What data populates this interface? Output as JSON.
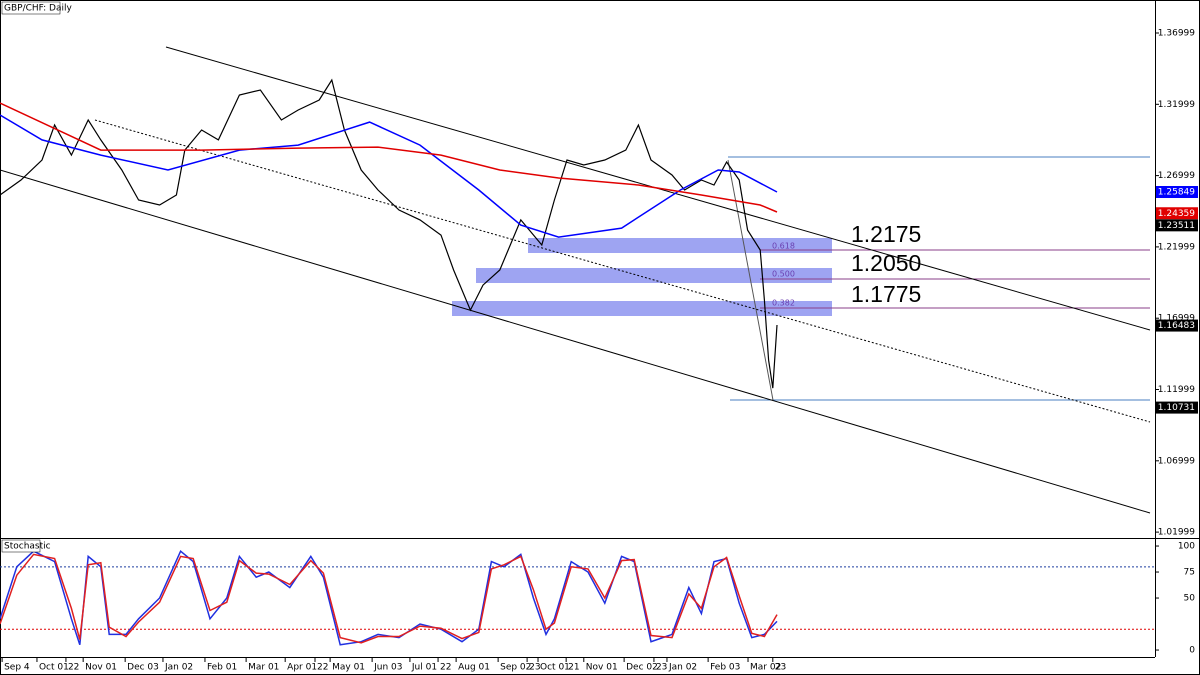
{
  "chart_data": [
    {
      "type": "line",
      "title": "GBP/CHF: Daily",
      "xlim": [
        0,
        275
      ],
      "ylim": [
        1.01586,
        1.39173
      ],
      "yticks": [
        1.01999,
        1.06999,
        1.11999,
        1.16999,
        1.21999,
        1.26999,
        1.31999,
        1.36999
      ],
      "series": [
        {
          "color": "#000000",
          "x": [
            0,
            5,
            10,
            13,
            17,
            21,
            24,
            29,
            33,
            38,
            42,
            44,
            48,
            52,
            57,
            62,
            67,
            71,
            76,
            79,
            82,
            86,
            90,
            95,
            100,
            105,
            108,
            112,
            115,
            119,
            124,
            129,
            132,
            135,
            139,
            144,
            149,
            152,
            155,
            160,
            163,
            167,
            170,
            173,
            176,
            178,
            181,
            182,
            183,
            184,
            185
          ],
          "values": [
            1.2564,
            1.2669,
            1.2809,
            1.3055,
            1.2844,
            1.309,
            1.295,
            1.2739,
            1.2529,
            1.2494,
            1.2564,
            1.2879,
            1.302,
            1.295,
            1.3265,
            1.33,
            1.309,
            1.316,
            1.323,
            1.337,
            1.302,
            1.2739,
            1.2599,
            1.2459,
            1.2389,
            1.2283,
            1.2038,
            1.1757,
            1.1932,
            1.2038,
            1.2389,
            1.2213,
            1.2529,
            1.2809,
            1.2774,
            1.2809,
            1.2879,
            1.3055,
            1.2809,
            1.2704,
            1.2599,
            1.2669,
            1.2634,
            1.2795,
            1.2669,
            1.2318,
            1.2178,
            1.1827,
            1.1406,
            1.121,
            1.1652
          ]
        },
        {
          "color": "#0000ff",
          "x": [
            0,
            10,
            24,
            40,
            57,
            71,
            88,
            100,
            114,
            124,
            133,
            148,
            162,
            171,
            176,
            185
          ],
          "values": [
            1.3125,
            1.295,
            1.2844,
            1.2739,
            1.2879,
            1.2914,
            1.3075,
            1.2914,
            1.2599,
            1.2353,
            1.2269,
            1.2332,
            1.2599,
            1.2739,
            1.2725,
            1.2585
          ]
        },
        {
          "color": "#e00000",
          "x": [
            0,
            24,
            48,
            71,
            90,
            105,
            119,
            133,
            152,
            167,
            181,
            185
          ],
          "values": [
            1.3209,
            1.2879,
            1.2879,
            1.2893,
            1.29,
            1.2844,
            1.2739,
            1.2683,
            1.2634,
            1.2564,
            1.2494,
            1.2445
          ]
        }
      ],
      "price_tags": [
        {
          "value": 1.25849,
          "color": "#0000ff"
        },
        {
          "value": 1.24359,
          "color": "#e00000"
        },
        {
          "value": 1.23511,
          "color": "#000000"
        },
        {
          "value": 1.16483,
          "color": "#000000"
        },
        {
          "value": 1.10731,
          "color": "#000000"
        }
      ],
      "fib_labels": [
        "0.618",
        "0.500",
        "0.382"
      ],
      "annotations": [
        "1.2175",
        "1.2050",
        "1.1775"
      ]
    },
    {
      "type": "line",
      "title": "Stochastic",
      "xlim": [
        0,
        275
      ],
      "ylim": [
        -6.7,
        105.8
      ],
      "yticks": [
        0,
        50,
        75,
        100
      ],
      "levels": [
        {
          "value": 80,
          "color": "#1f3fa0"
        },
        {
          "value": 20,
          "color": "#e00000"
        }
      ],
      "xticks": [
        {
          "value": 0.5,
          "label": "Sep 4"
        },
        {
          "value": 8.8,
          "label": "Oct 01"
        },
        {
          "value": 15.7,
          "label": "22"
        },
        {
          "value": 19.8,
          "label": "Nov 01"
        },
        {
          "value": 29.8,
          "label": "Dec 03"
        },
        {
          "value": 38.8,
          "label": "Jan 02"
        },
        {
          "value": 48.8,
          "label": "Feb 01"
        },
        {
          "value": 58.6,
          "label": "Mar 01"
        },
        {
          "value": 67.9,
          "label": "Apr 01"
        },
        {
          "value": 75,
          "label": "22"
        },
        {
          "value": 78.6,
          "label": "May 01"
        },
        {
          "value": 88.6,
          "label": "Jun 03"
        },
        {
          "value": 97.6,
          "label": "Jul 01"
        },
        {
          "value": 104.3,
          "label": "22"
        },
        {
          "value": 108.6,
          "label": "Aug 01"
        },
        {
          "value": 118.6,
          "label": "Sep 02"
        },
        {
          "value": 125.5,
          "label": "23"
        },
        {
          "value": 128.1,
          "label": "Oct 01"
        },
        {
          "value": 134.8,
          "label": "21"
        },
        {
          "value": 139,
          "label": "Nov 01"
        },
        {
          "value": 148.6,
          "label": "Dec 02"
        },
        {
          "value": 155.7,
          "label": "23"
        },
        {
          "value": 158.8,
          "label": "Jan 02"
        },
        {
          "value": 168.6,
          "label": "Feb 03"
        },
        {
          "value": 178.1,
          "label": "Mar 02"
        },
        {
          "value": 184,
          "label": "23"
        }
      ],
      "series": [
        {
          "color": "#2030e0",
          "x": [
            0,
            4,
            8,
            13,
            17,
            19,
            21,
            24,
            26,
            30,
            33,
            38,
            43,
            46,
            50,
            54,
            57,
            61,
            64,
            69,
            74,
            77,
            81,
            86,
            90,
            95,
            100,
            105,
            110,
            114,
            117,
            120,
            124,
            127,
            130,
            132,
            136,
            140,
            144,
            148,
            151,
            155,
            160,
            164,
            167,
            170,
            173,
            176,
            179,
            182,
            185
          ],
          "values": [
            30,
            80,
            95,
            85,
            30,
            5,
            90,
            80,
            15,
            15,
            30,
            50,
            95,
            85,
            30,
            50,
            90,
            70,
            75,
            60,
            90,
            70,
            5,
            8,
            15,
            12,
            25,
            20,
            8,
            20,
            85,
            80,
            92,
            50,
            15,
            30,
            85,
            75,
            45,
            90,
            85,
            8,
            15,
            60,
            35,
            85,
            88,
            45,
            12,
            15,
            27.55
          ]
        },
        {
          "color": "#e02020",
          "x": [
            0,
            4,
            8,
            13,
            17,
            19,
            21,
            24,
            26,
            30,
            33,
            38,
            43,
            46,
            50,
            54,
            57,
            61,
            64,
            69,
            74,
            77,
            81,
            86,
            90,
            95,
            100,
            105,
            110,
            114,
            117,
            120,
            124,
            127,
            130,
            132,
            136,
            140,
            144,
            148,
            151,
            155,
            160,
            164,
            167,
            170,
            173,
            176,
            179,
            182,
            185
          ],
          "values": [
            25,
            72,
            92,
            88,
            40,
            10,
            82,
            84,
            22,
            13,
            27,
            46,
            90,
            88,
            38,
            46,
            86,
            74,
            73,
            63,
            86,
            74,
            12,
            7,
            13,
            13,
            23,
            21,
            11,
            17,
            78,
            82,
            90,
            58,
            20,
            26,
            80,
            78,
            50,
            86,
            87,
            14,
            12,
            54,
            40,
            80,
            89,
            52,
            16,
            13,
            34.04
          ]
        }
      ]
    }
  ]
}
